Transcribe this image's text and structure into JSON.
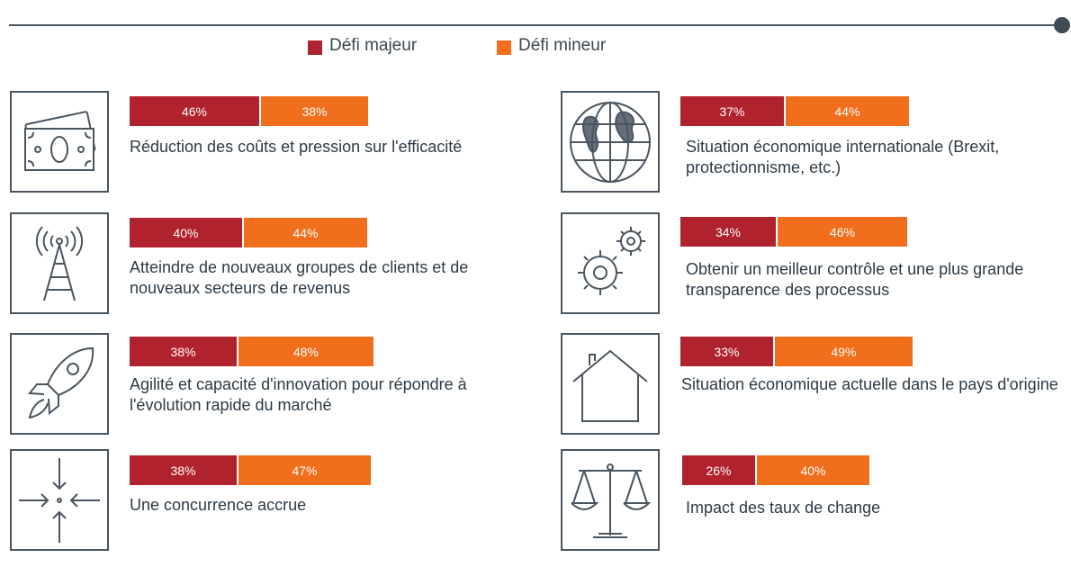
{
  "legend": {
    "major": "Défi majeur",
    "minor": "Défi mineur"
  },
  "colors": {
    "major": "#b0222d",
    "minor": "#f06e1c",
    "line": "#4a5560"
  },
  "chart_data": {
    "type": "bar",
    "stacked": true,
    "orientation": "horizontal",
    "series_names": [
      "Défi majeur",
      "Défi mineur"
    ],
    "items": [
      {
        "label": "Réduction des coûts et pression sur l'efficacité",
        "major": 46,
        "minor": 38,
        "major_text": "46%",
        "minor_text": "38%",
        "icon": "money-icon"
      },
      {
        "label": "Atteindre de nouveaux groupes de clients et de nouveaux secteurs de revenus",
        "major": 40,
        "minor": 44,
        "major_text": "40%",
        "minor_text": "44%",
        "icon": "antenna-icon"
      },
      {
        "label": "Agilité et capacité d'innovation pour répondre à l'évolution rapide du marché",
        "major": 38,
        "minor": 48,
        "major_text": "38%",
        "minor_text": "48%",
        "icon": "rocket-icon"
      },
      {
        "label": "Une concurrence accrue",
        "major": 38,
        "minor": 47,
        "major_text": "38%",
        "minor_text": "47%",
        "icon": "converging-arrows-icon"
      },
      {
        "label": "Situation économique internationale (Brexit, protectionnisme, etc.)",
        "major": 37,
        "minor": 44,
        "major_text": "37%",
        "minor_text": "44%",
        "icon": "globe-icon"
      },
      {
        "label": "Obtenir un meilleur contrôle et une plus grande transparence des processus",
        "major": 34,
        "minor": 46,
        "major_text": "34%",
        "minor_text": "46%",
        "icon": "gears-icon"
      },
      {
        "label": "Situation économique actuelle dans le pays d'origine",
        "major": 33,
        "minor": 49,
        "major_text": "33%",
        "minor_text": "49%",
        "icon": "house-icon"
      },
      {
        "label": "Impact des taux de change",
        "major": 26,
        "minor": 40,
        "major_text": "26%",
        "minor_text": "40%",
        "icon": "scales-icon"
      }
    ]
  }
}
